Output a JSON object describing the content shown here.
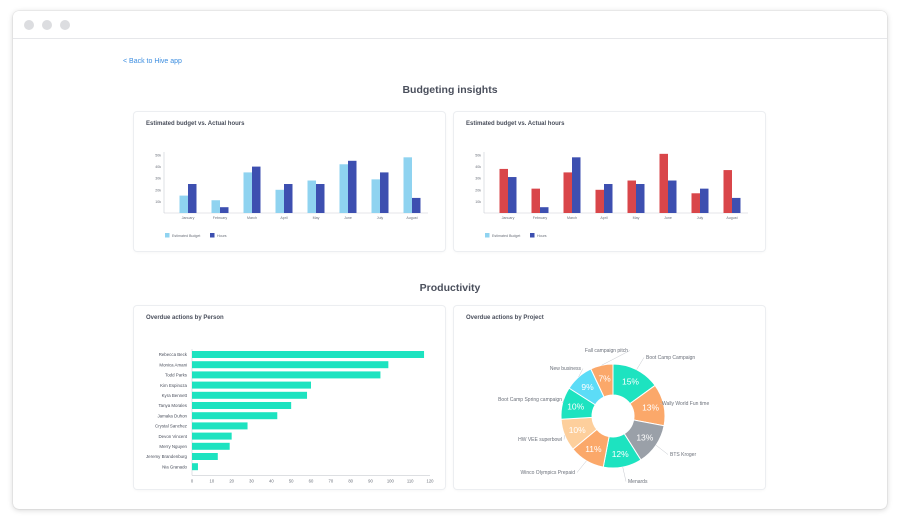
{
  "app": {
    "back_link": "< Back to Hive app"
  },
  "sections": {
    "budgeting": "Budgeting insights",
    "productivity": "Productivity"
  },
  "colors": {
    "estimated": "#8fd3f0",
    "hours": "#3d4fb0",
    "over_budget": "#d9464a",
    "bar_teal": "#1de3c0",
    "axis": "#c9ccd2",
    "text": "#4a4f5c"
  },
  "chart_data": [
    {
      "type": "bar",
      "title": "Estimated budget  vs. Actual hours",
      "categories": [
        "January",
        "February",
        "March",
        "April",
        "May",
        "June",
        "July",
        "August"
      ],
      "series": [
        {
          "name": "Estimated Budget",
          "values": [
            15,
            11,
            35,
            20,
            28,
            42,
            29,
            48
          ]
        },
        {
          "name": "Hours",
          "values": [
            25,
            5,
            40,
            25,
            25,
            45,
            35,
            13
          ]
        }
      ],
      "yticks": [
        "10k",
        "20k",
        "30k",
        "40k",
        "50k"
      ],
      "ylim": [
        0,
        50
      ],
      "legend": "bottom-left"
    },
    {
      "type": "bar",
      "title": "Estimated budget  vs. Actual hours",
      "categories": [
        "January",
        "February",
        "March",
        "April",
        "May",
        "June",
        "July",
        "August"
      ],
      "series": [
        {
          "name": "Estimated Budget",
          "values": [
            38,
            21,
            35,
            20,
            28,
            51,
            17,
            37
          ]
        },
        {
          "name": "Hours",
          "values": [
            31,
            5,
            48,
            25,
            25,
            28,
            21,
            13
          ]
        }
      ],
      "yticks": [
        "10k",
        "20k",
        "30k",
        "40k",
        "50k"
      ],
      "ylim": [
        0,
        50
      ],
      "legend": "bottom-left"
    },
    {
      "type": "bar",
      "orientation": "horizontal",
      "title": "Overdue actions by Person",
      "categories": [
        "Rebecca Beck",
        "Monica Amani",
        "Todd Parks",
        "Kim Espinoza",
        "Kyra Bennett",
        "Tanya Morales",
        "Jamaka Duhon",
        "Crystal Sanchez",
        "Devon Vincent",
        "Merry Nguyen",
        "Jeremy Brandenburg",
        "Nia Granado"
      ],
      "values": [
        117,
        99,
        95,
        60,
        58,
        50,
        43,
        28,
        20,
        19,
        13,
        3
      ],
      "xticks": [
        "0",
        "10",
        "20",
        "30",
        "40",
        "50",
        "60",
        "70",
        "80",
        "90",
        "100",
        "110",
        "120"
      ],
      "xlim": [
        0,
        120
      ]
    },
    {
      "type": "pie",
      "title": "Overdue actions by Project",
      "slices": [
        {
          "name": "Boot Camp Campaign",
          "label": "15%",
          "value": 15,
          "color": "#1de3c0"
        },
        {
          "name": "Wally World Fun time",
          "label": "13%",
          "value": 13,
          "color": "#fba86a"
        },
        {
          "name": "BTS Kroger",
          "label": "13%",
          "value": 13,
          "color": "#9aa0a8"
        },
        {
          "name": "Menards",
          "label": "12%",
          "value": 12,
          "color": "#1de3c0"
        },
        {
          "name": "Winco Olympics Prepaid",
          "label": "11%",
          "value": 11,
          "color": "#fba86a"
        },
        {
          "name": "HW VEE superbowl",
          "label": "10%",
          "value": 10,
          "color": "#fdcf9c"
        },
        {
          "name": "Boot Camp Spring campaign",
          "label": "10%",
          "value": 10,
          "color": "#1de3c0"
        },
        {
          "name": "New business",
          "label": "9%",
          "value": 9,
          "color": "#5cdcf7"
        },
        {
          "name": "Fall campaign pitch",
          "label": "7%",
          "value": 7,
          "color": "#fba86a"
        }
      ]
    }
  ]
}
